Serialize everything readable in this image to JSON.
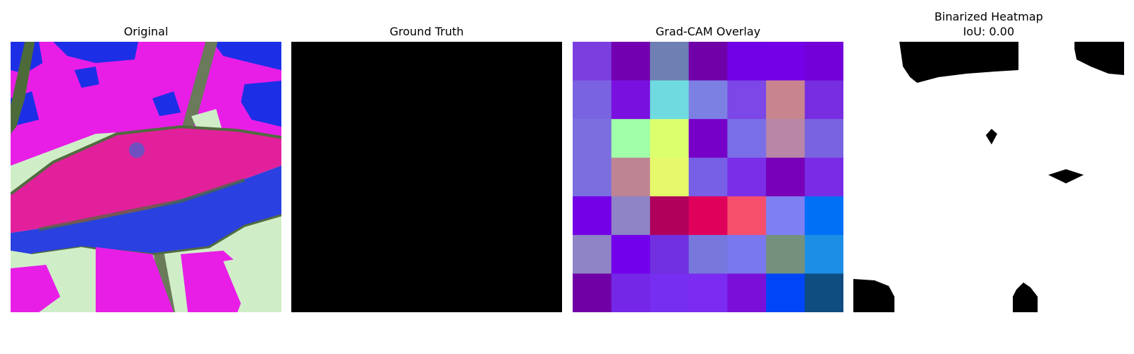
{
  "panels": [
    {
      "title": "Original"
    },
    {
      "title": "Ground Truth"
    },
    {
      "title": "Grad-CAM Overlay"
    },
    {
      "title": "Binarized Heatmap",
      "subtitle": "IoU: 0.00"
    }
  ],
  "gradcam_grid": [
    [
      "#7b3fe0",
      "#7300b0",
      "#6e80b3",
      "#7000a8",
      "#7100e6",
      "#7300e6",
      "#7300d8"
    ],
    [
      "#7a63e0",
      "#7a10e0",
      "#6fdbe0",
      "#7d80e3",
      "#7c47e6",
      "#c8858f",
      "#762ee0"
    ],
    [
      "#7b6fe0",
      "#a0ffa8",
      "#dcff6e",
      "#7700c8",
      "#7a6fe8",
      "#b986a8",
      "#7a63e0"
    ],
    [
      "#7b6fe0",
      "#bf8494",
      "#e6f96b",
      "#775fe6",
      "#7a2ee8",
      "#7700b8",
      "#7a2be6"
    ],
    [
      "#7300e6",
      "#8e84c6",
      "#b0005c",
      "#e0005c",
      "#f54f6c",
      "#7f7ff4",
      "#0070f6"
    ],
    [
      "#8e84c6",
      "#7300ec",
      "#7030e0",
      "#7777dc",
      "#7a78ee",
      "#74917e",
      "#1c8ee6"
    ],
    [
      "#7000a6",
      "#7427e6",
      "#762ef0",
      "#7b2bf2",
      "#7a10d8",
      "#0046f8",
      "#0f4c80"
    ]
  ],
  "colors": {
    "ground_truth": "#000000",
    "binary_on": "#000000",
    "binary_off": "#ffffff"
  }
}
